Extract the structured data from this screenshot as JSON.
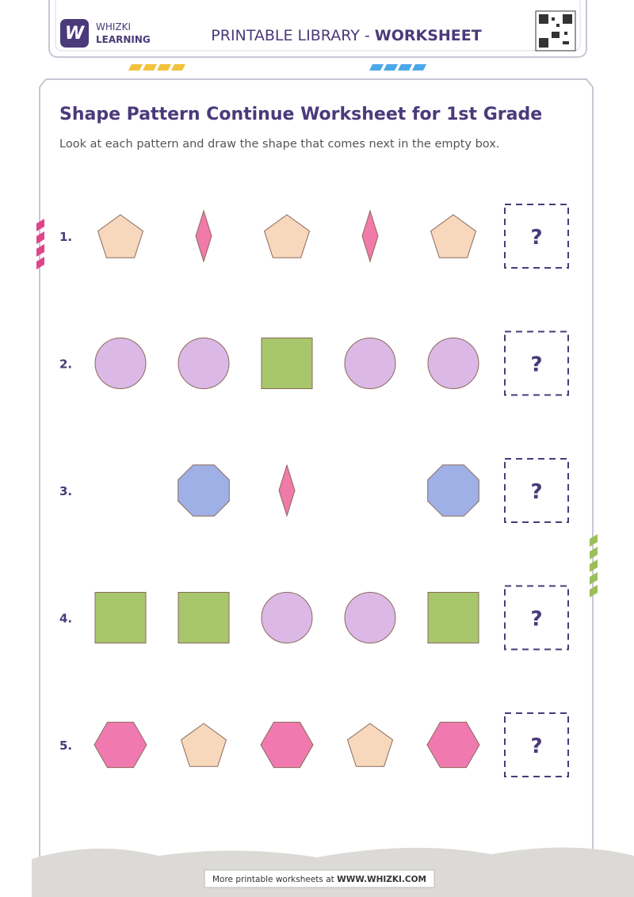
{
  "header": {
    "brand_top": "WHIZKI",
    "brand_bottom": "LEARNING",
    "library_label": "PRINTABLE LIBRARY - ",
    "library_type": "WORKSHEET"
  },
  "title": "Shape Pattern Continue Worksheet for 1st Grade",
  "instructions": "Look at each pattern and draw the shape that comes next in the empty box.",
  "rows": [
    {
      "number": "1.",
      "answer": "?"
    },
    {
      "number": "2.",
      "answer": "?"
    },
    {
      "number": "3.",
      "answer": "?"
    },
    {
      "number": "4.",
      "answer": "?"
    },
    {
      "number": "5.",
      "answer": "?"
    }
  ],
  "footer": {
    "text": "More printable worksheets at ",
    "link": "WWW.WHIZKI.COM"
  }
}
